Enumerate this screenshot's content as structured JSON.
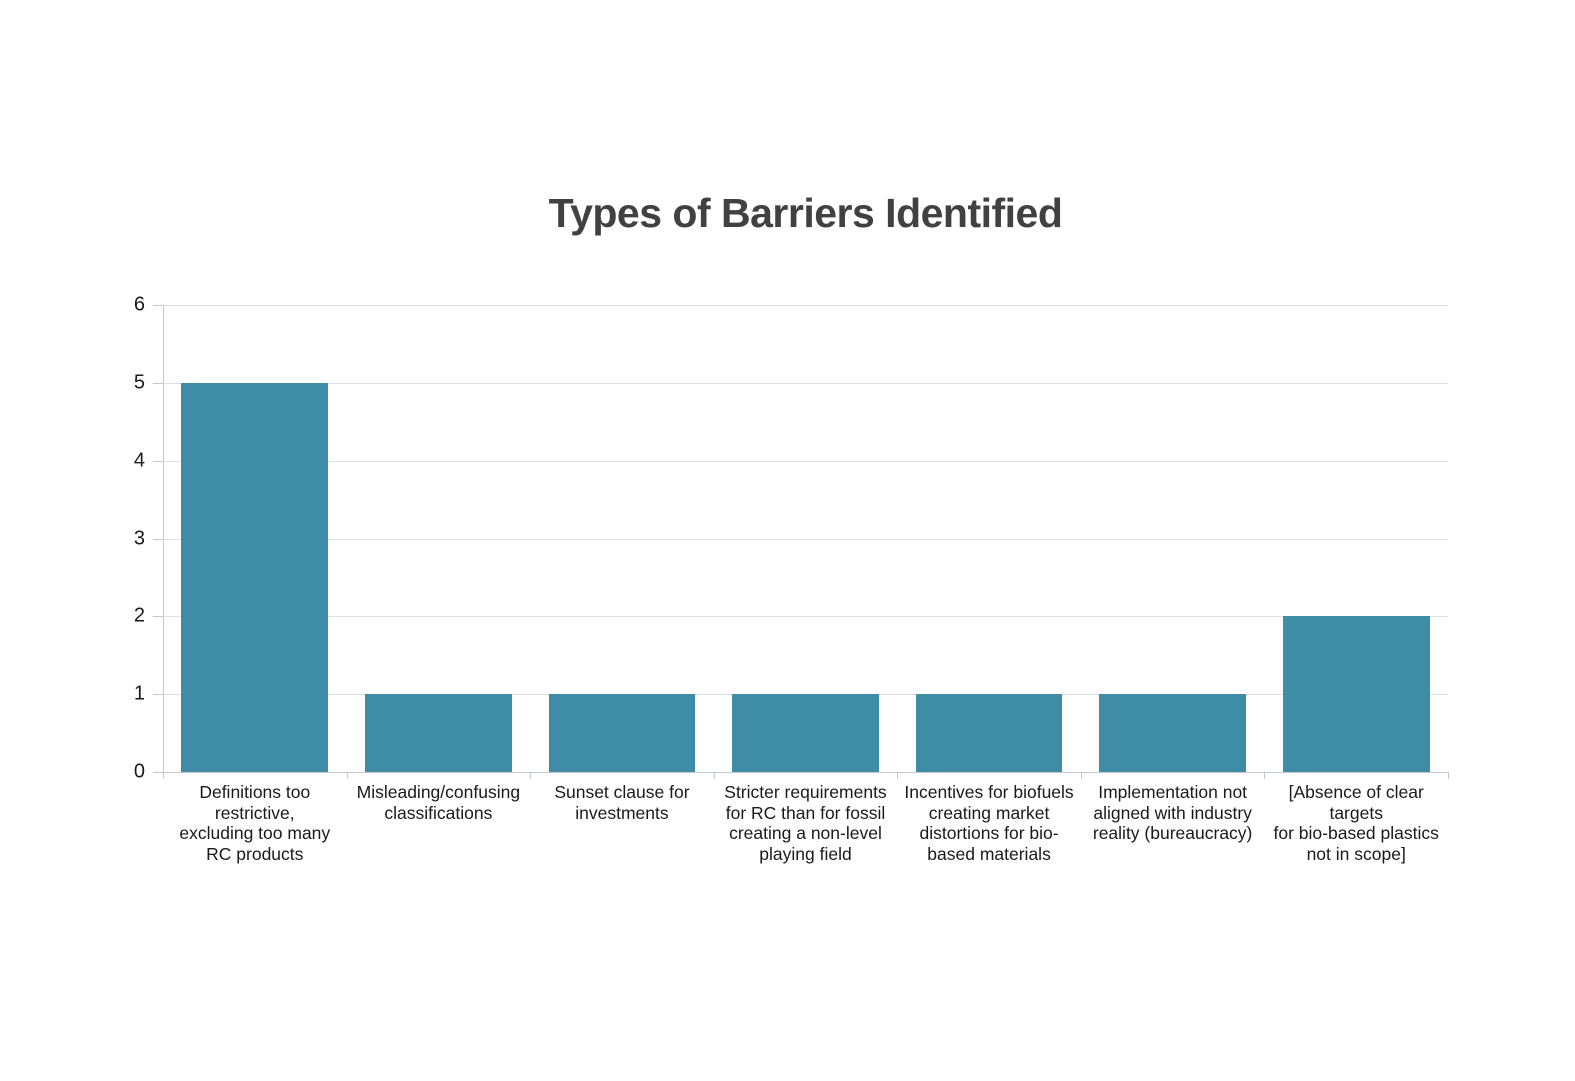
{
  "chart_data": {
    "type": "bar",
    "title": "Types of Barriers Identified",
    "categories": [
      "Definitions too\nrestrictive,\nexcluding too many\nRC products",
      "Misleading/confusing\nclassifications",
      "Sunset clause for\ninvestments",
      "Stricter requirements\nfor RC than for fossil\ncreating a non-level\nplaying field",
      "Incentives for biofuels\ncreating market\ndistortions for bio-\nbased materials",
      "Implementation not\naligned with industry\nreality (bureaucracy)",
      "[Absence of clear\ntargets\nfor bio-based plastics\nnot in scope]"
    ],
    "values": [
      5,
      1,
      1,
      1,
      1,
      1,
      2
    ],
    "xlabel": "",
    "ylabel": "",
    "ylim": [
      0,
      6
    ],
    "yticks": [
      0,
      1,
      2,
      3,
      4,
      5,
      6
    ],
    "grid": "horizontal",
    "legend": "none",
    "colors": {
      "bar": "#3e8ca6",
      "gridline": "#dce0e4",
      "axis": "#c3c8cc",
      "title": "#414042",
      "tick_label": "#1a1a1a"
    }
  }
}
